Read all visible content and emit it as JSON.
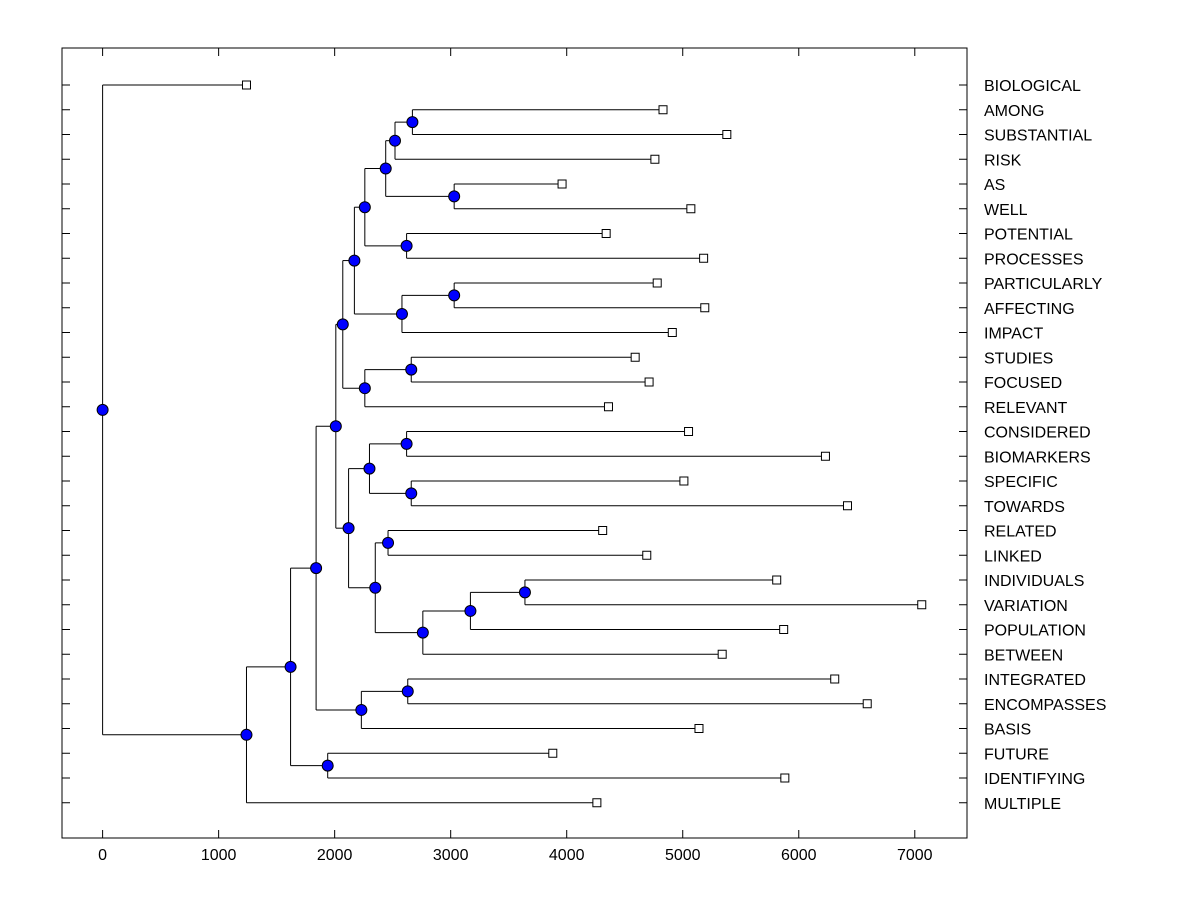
{
  "chart_data": {
    "type": "dendrogram",
    "orientation": "horizontal",
    "xlim": [
      -350,
      7450
    ],
    "xticks": [
      0,
      1000,
      2000,
      3000,
      4000,
      5000,
      6000,
      7000
    ],
    "tick_labels": [
      "0",
      "1000",
      "2000",
      "3000",
      "4000",
      "5000",
      "6000",
      "7000"
    ],
    "leaves": [
      {
        "label": "BIOLOGICAL",
        "x": 1240
      },
      {
        "label": "AMONG",
        "x": 4830
      },
      {
        "label": "SUBSTANTIAL",
        "x": 5380
      },
      {
        "label": "RISK",
        "x": 4760
      },
      {
        "label": "AS",
        "x": 3960
      },
      {
        "label": "WELL",
        "x": 5070
      },
      {
        "label": "POTENTIAL",
        "x": 4340
      },
      {
        "label": "PROCESSES",
        "x": 5180
      },
      {
        "label": "PARTICULARLY",
        "x": 4780
      },
      {
        "label": "AFFECTING",
        "x": 5190
      },
      {
        "label": "IMPACT",
        "x": 4910
      },
      {
        "label": "STUDIES",
        "x": 4590
      },
      {
        "label": "FOCUSED",
        "x": 4710
      },
      {
        "label": "RELEVANT",
        "x": 4360
      },
      {
        "label": "CONSIDERED",
        "x": 5050
      },
      {
        "label": "BIOMARKERS",
        "x": 6230
      },
      {
        "label": "SPECIFIC",
        "x": 5010
      },
      {
        "label": "TOWARDS",
        "x": 6420
      },
      {
        "label": "RELATED",
        "x": 4310
      },
      {
        "label": "LINKED",
        "x": 4690
      },
      {
        "label": "INDIVIDUALS",
        "x": 5810
      },
      {
        "label": "VARIATION",
        "x": 7060
      },
      {
        "label": "POPULATION",
        "x": 5870
      },
      {
        "label": "BETWEEN",
        "x": 5340
      },
      {
        "label": "INTEGRATED",
        "x": 6310
      },
      {
        "label": "ENCOMPASSES",
        "x": 6590
      },
      {
        "label": "BASIS",
        "x": 5140
      },
      {
        "label": "FUTURE",
        "x": 3880
      },
      {
        "label": "IDENTIFYING",
        "x": 5880
      },
      {
        "label": "MULTIPLE",
        "x": 4260
      }
    ],
    "merges": [
      {
        "id": "N1",
        "x": 2670,
        "children": [
          "L1",
          "L2"
        ]
      },
      {
        "id": "N2",
        "x": 2520,
        "children": [
          "N1",
          "L3"
        ]
      },
      {
        "id": "N3",
        "x": 3030,
        "children": [
          "L4",
          "L5"
        ]
      },
      {
        "id": "N4",
        "x": 2440,
        "children": [
          "N2",
          "N3"
        ]
      },
      {
        "id": "N5",
        "x": 2620,
        "children": [
          "L6",
          "L7"
        ]
      },
      {
        "id": "N6",
        "x": 2260,
        "children": [
          "N4",
          "N5"
        ]
      },
      {
        "id": "N7",
        "x": 3030,
        "children": [
          "L8",
          "L9"
        ]
      },
      {
        "id": "N8",
        "x": 2580,
        "children": [
          "N7",
          "L10"
        ]
      },
      {
        "id": "N9",
        "x": 2170,
        "children": [
          "N6",
          "N8"
        ]
      },
      {
        "id": "N10",
        "x": 2660,
        "children": [
          "L11",
          "L12"
        ]
      },
      {
        "id": "N11",
        "x": 2260,
        "children": [
          "N10",
          "L13"
        ]
      },
      {
        "id": "N12",
        "x": 2070,
        "children": [
          "N9",
          "N11"
        ]
      },
      {
        "id": "N13",
        "x": 2620,
        "children": [
          "L14",
          "L15"
        ]
      },
      {
        "id": "N14",
        "x": 2660,
        "children": [
          "L16",
          "L17"
        ]
      },
      {
        "id": "N15",
        "x": 2300,
        "children": [
          "N13",
          "N14"
        ]
      },
      {
        "id": "N16",
        "x": 2460,
        "children": [
          "L18",
          "L19"
        ]
      },
      {
        "id": "N17",
        "x": 3640,
        "children": [
          "L20",
          "L21"
        ]
      },
      {
        "id": "N18",
        "x": 3170,
        "children": [
          "N17",
          "L22"
        ]
      },
      {
        "id": "N19",
        "x": 2760,
        "children": [
          "N18",
          "L23"
        ]
      },
      {
        "id": "N20",
        "x": 2350,
        "children": [
          "N16",
          "N19"
        ]
      },
      {
        "id": "N21",
        "x": 2120,
        "children": [
          "N15",
          "N20"
        ]
      },
      {
        "id": "N22",
        "x": 2010,
        "children": [
          "N12",
          "N21"
        ]
      },
      {
        "id": "N23",
        "x": 2630,
        "children": [
          "L24",
          "L25"
        ]
      },
      {
        "id": "N24",
        "x": 2230,
        "children": [
          "N23",
          "L26"
        ]
      },
      {
        "id": "N25",
        "x": 1840,
        "children": [
          "N22",
          "N24"
        ]
      },
      {
        "id": "N26",
        "x": 1940,
        "children": [
          "L27",
          "L28"
        ]
      },
      {
        "id": "N27",
        "x": 1620,
        "children": [
          "N25",
          "N26"
        ]
      },
      {
        "id": "N28",
        "x": 1240,
        "children": [
          "N27",
          "L29"
        ]
      },
      {
        "id": "N29",
        "x": 0,
        "children": [
          "L0",
          "N28"
        ]
      }
    ],
    "colors": {
      "node_fill": "#0000ff",
      "line": "#000000",
      "leaf_marker_fill": "#ffffff"
    },
    "grid": false
  }
}
